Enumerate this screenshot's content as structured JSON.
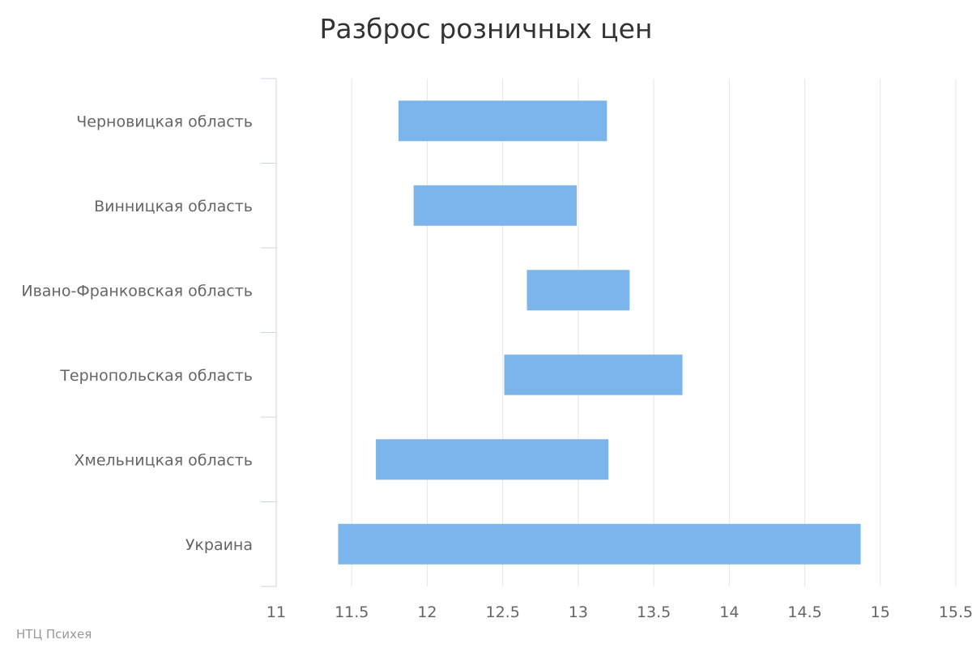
{
  "chart_data": {
    "type": "bar",
    "orientation": "horizontal",
    "subtype": "range",
    "title": "Разброс розничных цен",
    "xlabel": "",
    "ylabel": "",
    "categories": [
      "Черновицкая область",
      "Винницкая область",
      "Ивано-Франковская область",
      "Тернопольская область",
      "Хмельницкая область",
      "Украина"
    ],
    "ranges": [
      [
        11.81,
        13.19
      ],
      [
        11.91,
        12.99
      ],
      [
        12.66,
        13.34
      ],
      [
        12.51,
        13.69
      ],
      [
        11.66,
        13.2
      ],
      [
        11.41,
        14.87
      ]
    ],
    "xlim": [
      11,
      15.5
    ],
    "xticks": [
      11,
      11.5,
      12,
      12.5,
      13,
      13.5,
      14,
      14.5,
      15,
      15.5
    ],
    "xtick_labels": [
      "11",
      "11.5",
      "12",
      "12.5",
      "13",
      "13.5",
      "14",
      "14.5",
      "15",
      "15.5"
    ],
    "grid": true,
    "legend": "none",
    "bar_color": "#7cb5ec"
  },
  "credits": "НТЦ Психея"
}
